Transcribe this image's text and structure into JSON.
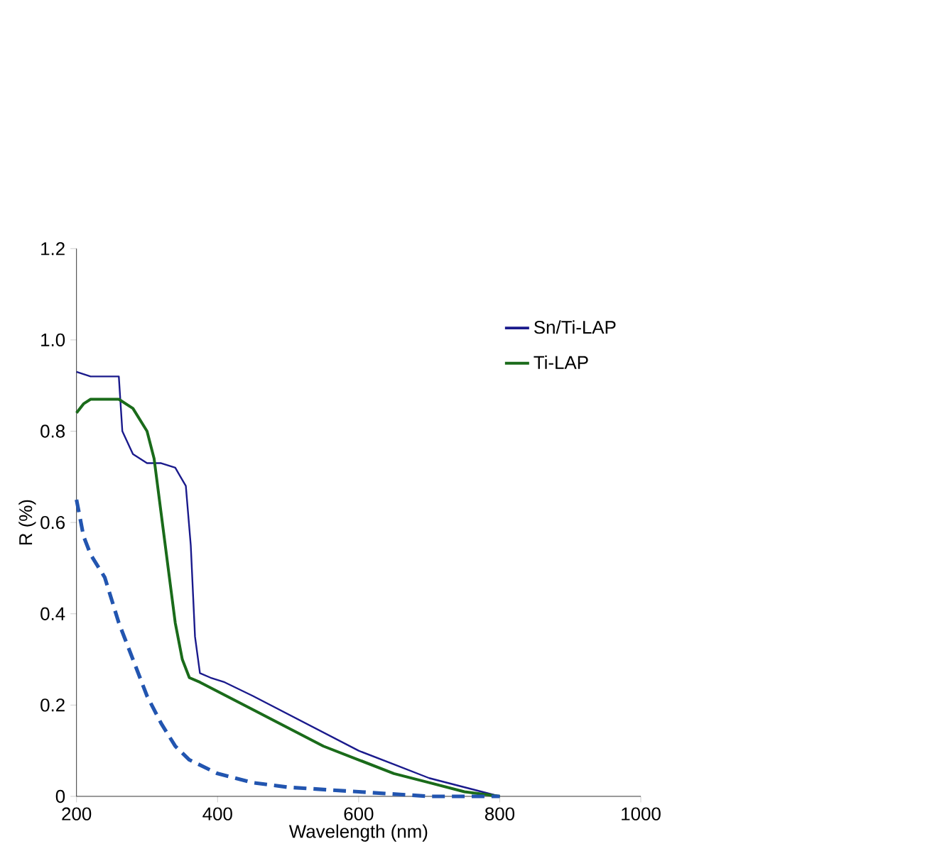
{
  "chart_data": {
    "type": "line",
    "xlabel": "Wavelength (nm)",
    "ylabel": "R (%)",
    "xlim": [
      200,
      1000
    ],
    "ylim": [
      0,
      1.2
    ],
    "xticks": [
      200,
      400,
      600,
      800,
      1000
    ],
    "yticks": [
      {
        "value": 0,
        "label": "0"
      },
      {
        "value": 0.2,
        "label": "0.2"
      },
      {
        "value": 0.4,
        "label": "0.4"
      },
      {
        "value": 0.6,
        "label": "0.6"
      },
      {
        "value": 0.8,
        "label": "0.8"
      },
      {
        "value": 1.0,
        "label": "1.0"
      },
      {
        "value": 1.2,
        "label": "1.2"
      }
    ],
    "grid": false,
    "legend": "top right",
    "marker": "none",
    "series": [
      {
        "name": "Sn/Ti-LAP",
        "color": "#1a1a8c",
        "line_style": "solid",
        "x": [
          200,
          220,
          240,
          260,
          265,
          280,
          300,
          320,
          340,
          355,
          362,
          368,
          375,
          390,
          410,
          450,
          500,
          550,
          600,
          650,
          700,
          750,
          800
        ],
        "values": [
          0.93,
          0.92,
          0.92,
          0.92,
          0.8,
          0.75,
          0.73,
          0.73,
          0.72,
          0.68,
          0.55,
          0.35,
          0.27,
          0.26,
          0.25,
          0.22,
          0.18,
          0.14,
          0.1,
          0.07,
          0.04,
          0.02,
          0.0
        ]
      },
      {
        "name": "Ti-LAP",
        "color": "#1a6b1a",
        "line_style": "solid",
        "x": [
          200,
          210,
          220,
          260,
          280,
          300,
          310,
          320,
          330,
          340,
          350,
          360,
          375,
          400,
          450,
          500,
          550,
          600,
          650,
          700,
          750,
          800
        ],
        "values": [
          0.84,
          0.86,
          0.87,
          0.87,
          0.85,
          0.8,
          0.74,
          0.62,
          0.5,
          0.38,
          0.3,
          0.26,
          0.25,
          0.23,
          0.19,
          0.15,
          0.11,
          0.08,
          0.05,
          0.03,
          0.01,
          0.0
        ]
      },
      {
        "color": "#2255b0",
        "line_style": "dashed",
        "x": [
          200,
          210,
          220,
          240,
          260,
          280,
          300,
          320,
          340,
          360,
          400,
          450,
          500,
          600,
          700,
          800
        ],
        "values": [
          0.65,
          0.57,
          0.53,
          0.48,
          0.38,
          0.3,
          0.22,
          0.16,
          0.11,
          0.08,
          0.05,
          0.03,
          0.02,
          0.01,
          0.0,
          0.0
        ]
      }
    ]
  }
}
